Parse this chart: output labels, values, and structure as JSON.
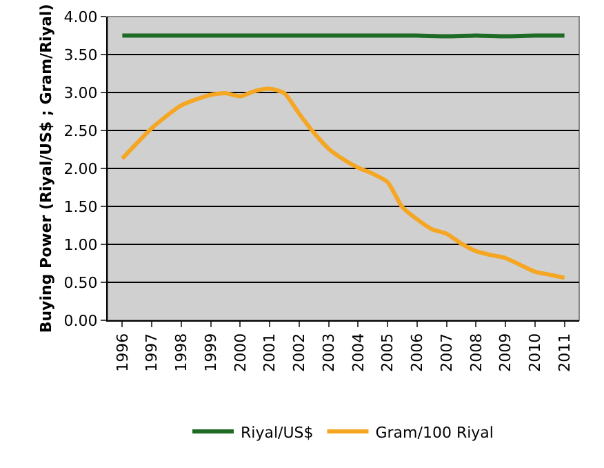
{
  "chart_data": {
    "type": "line",
    "ylabel": "Buying Power (Riyal/US$ ; Gram/Riyal)",
    "xlim": [
      1995.5,
      2011.5
    ],
    "xticks": [
      1996,
      1997,
      1998,
      1999,
      2000,
      2001,
      2002,
      2003,
      2004,
      2005,
      2006,
      2007,
      2008,
      2009,
      2010,
      2011
    ],
    "ylim": [
      0,
      4
    ],
    "yticks": [
      {
        "value": 0,
        "label": "0.00"
      },
      {
        "value": 0.5,
        "label": "0.50"
      },
      {
        "value": 1,
        "label": "1.00"
      },
      {
        "value": 1.5,
        "label": "1.50"
      },
      {
        "value": 2,
        "label": "2.00"
      },
      {
        "value": 2.5,
        "label": "2.50"
      },
      {
        "value": 3,
        "label": "3.00"
      },
      {
        "value": 3.5,
        "label": "3.50"
      },
      {
        "value": 4,
        "label": "4.00"
      }
    ],
    "grid": "y",
    "legend": "bottom",
    "marker": "none",
    "line_style": "solid",
    "series": [
      {
        "name": "Riyal/US$",
        "color": "#1e6b25",
        "x": [
          1996,
          1997,
          1998,
          1999,
          2000,
          2001,
          2002,
          2003,
          2004,
          2005,
          2006,
          2007,
          2008,
          2009,
          2010,
          2011
        ],
        "values": [
          3.75,
          3.75,
          3.75,
          3.75,
          3.75,
          3.75,
          3.75,
          3.75,
          3.75,
          3.75,
          3.75,
          3.74,
          3.75,
          3.74,
          3.75,
          3.75
        ]
      },
      {
        "name": "Gram/100 Riyal",
        "color": "#f5a623",
        "x": [
          1996,
          1997,
          1998,
          1999,
          1999.5,
          2000,
          2000.5,
          2001,
          2001.5,
          2002,
          2002.5,
          2003,
          2003.5,
          2004,
          2004.5,
          2005,
          2005.5,
          2006,
          2006.5,
          2007,
          2007.5,
          2008,
          2008.5,
          2009,
          2009.5,
          2010,
          2010.5,
          2011
        ],
        "values": [
          2.13,
          2.53,
          2.83,
          2.97,
          2.99,
          2.95,
          3.02,
          3.05,
          2.99,
          2.72,
          2.47,
          2.26,
          2.12,
          2.01,
          1.93,
          1.82,
          1.49,
          1.33,
          1.2,
          1.14,
          1.01,
          0.91,
          0.86,
          0.82,
          0.73,
          0.64,
          0.6,
          0.56
        ]
      }
    ]
  }
}
